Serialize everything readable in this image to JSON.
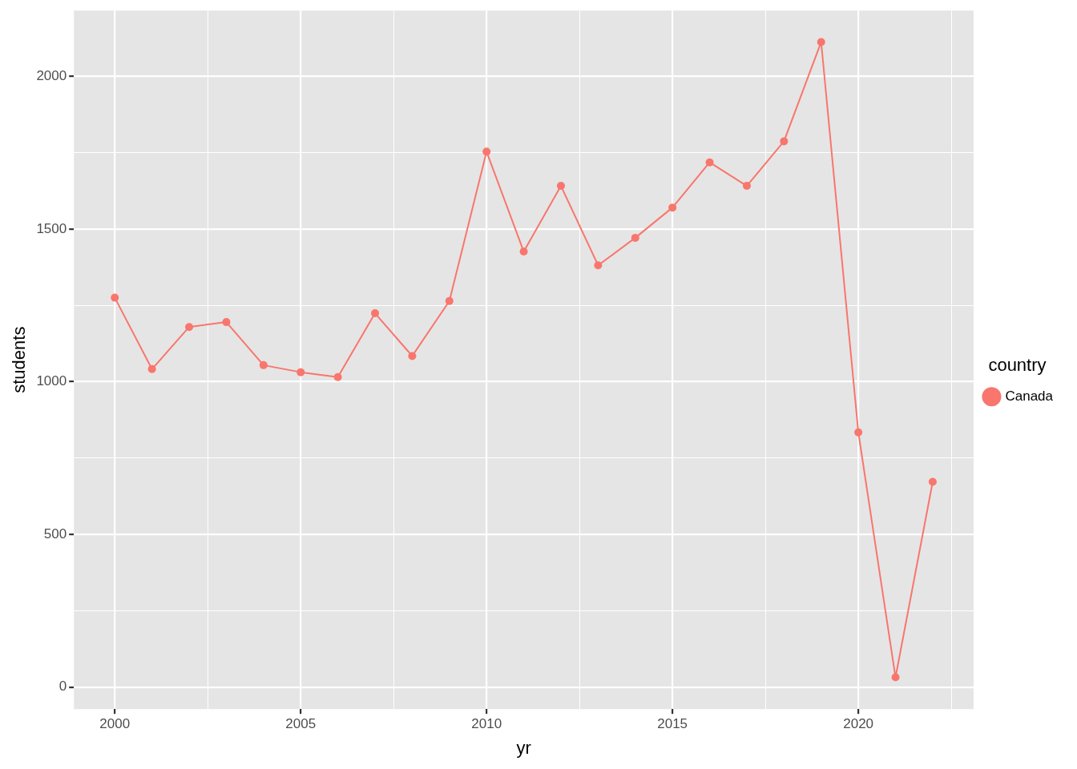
{
  "chart_data": {
    "type": "line",
    "xlabel": "yr",
    "ylabel": "students",
    "legend_title": "country",
    "x": [
      2000,
      2001,
      2002,
      2003,
      2004,
      2005,
      2006,
      2007,
      2008,
      2009,
      2010,
      2011,
      2012,
      2013,
      2014,
      2015,
      2016,
      2017,
      2018,
      2019,
      2020,
      2021,
      2022
    ],
    "series": [
      {
        "name": "Canada",
        "color": "#f8766d",
        "values": [
          1275,
          1041,
          1179,
          1195,
          1054,
          1031,
          1015,
          1224,
          1084,
          1264,
          1753,
          1426,
          1641,
          1381,
          1471,
          1570,
          1718,
          1641,
          1787,
          2112,
          834,
          32,
          672
        ]
      }
    ],
    "xlim": [
      1998.9,
      2023.1
    ],
    "ylim": [
      -72,
      2215
    ],
    "xticks": [
      2000,
      {
        "value": 2002.5,
        "label": null
      },
      2005,
      {
        "value": 2007.5,
        "label": null
      },
      2010,
      {
        "value": 2012.5,
        "label": null
      },
      2015,
      {
        "value": 2017.5,
        "label": null
      },
      2020,
      {
        "value": 2022.5,
        "label": null
      }
    ],
    "yticks": [
      0,
      {
        "value": 250,
        "label": null
      },
      500,
      {
        "value": 750,
        "label": null
      },
      1000,
      {
        "value": 1250,
        "label": null
      },
      1500,
      {
        "value": 1750,
        "label": null
      },
      2000
    ],
    "grid": true,
    "legend": "right",
    "marker": "circle",
    "line_style": "solid"
  }
}
